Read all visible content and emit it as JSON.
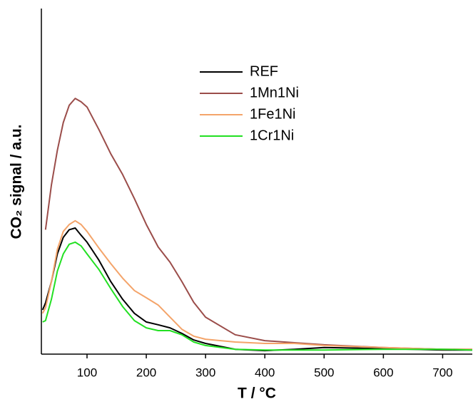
{
  "chart_data": {
    "type": "line",
    "xlabel": "T /  °C",
    "ylabel": "CO₂ signal / a.u.",
    "x": [
      25,
      30,
      40,
      50,
      60,
      70,
      80,
      90,
      100,
      120,
      140,
      160,
      180,
      200,
      220,
      240,
      260,
      280,
      300,
      350,
      400,
      450,
      500,
      600,
      700,
      750
    ],
    "series": [
      {
        "name": "REF",
        "color": "#000000",
        "values": [
          12.8,
          14.8,
          21,
          29,
          33.8,
          36,
          36.5,
          34.4,
          32.4,
          27.2,
          21,
          15.9,
          11.8,
          9.3,
          8.5,
          7.6,
          6,
          4.1,
          3.1,
          1.4,
          1,
          1.4,
          1.9,
          1.6,
          1.2,
          1.2
        ]
      },
      {
        "name": "1Mn1Ni",
        "color": "#9b4d4a",
        "values": [
          null,
          36,
          49,
          59,
          67,
          72,
          74,
          73,
          71.5,
          65,
          58,
          52,
          45,
          37.5,
          31,
          26.6,
          21,
          15,
          10.7,
          5.6,
          3.9,
          3.3,
          2.7,
          1.9,
          1.4,
          1.4
        ]
      },
      {
        "name": "1Fe1Ni",
        "color": "#f4a46a",
        "values": [
          11.8,
          13.4,
          21,
          30.3,
          35.5,
          37.5,
          38.6,
          37.5,
          35.5,
          30.7,
          26.2,
          22,
          18.4,
          16.3,
          14.2,
          10.7,
          7.2,
          5.2,
          4.3,
          3.5,
          3.1,
          3.1,
          2.5,
          1.9,
          1.4,
          1.4
        ]
      },
      {
        "name": "1Cr1Ni",
        "color": "#22e022",
        "values": [
          9.3,
          9.7,
          15.9,
          24,
          29,
          31.8,
          32.4,
          31.3,
          29,
          24.5,
          19,
          13.8,
          9.7,
          7.6,
          6.8,
          6.8,
          5.6,
          3.5,
          2.5,
          1.4,
          1.2,
          1.2,
          1.2,
          1.4,
          1.4,
          1.2
        ]
      }
    ],
    "xlim": [
      23,
      750
    ],
    "ylim": [
      0,
      100
    ],
    "xticks": [
      100,
      200,
      300,
      400,
      500,
      600,
      700
    ],
    "grid": false,
    "legend": "top-center"
  }
}
